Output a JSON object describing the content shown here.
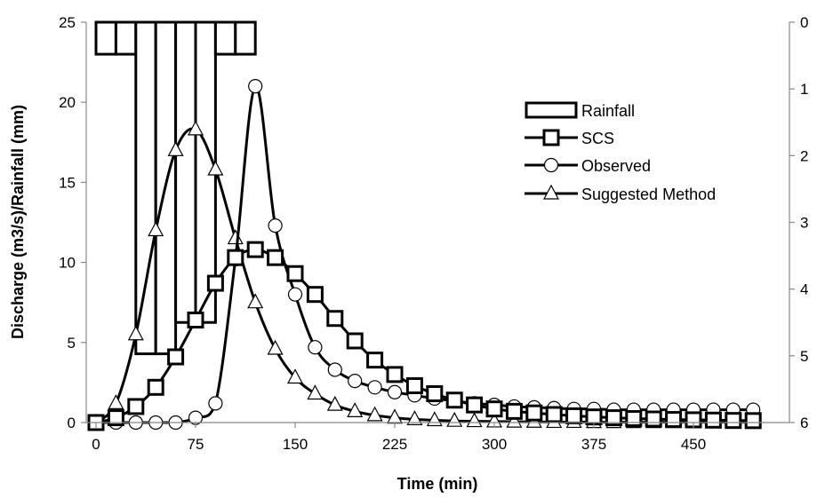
{
  "chart_data": {
    "type": "line",
    "title": "",
    "xlabel": "Time (min)",
    "ylabel": "Discharge (m3/s)/Rainfall (mm)",
    "xlim": [
      0,
      500
    ],
    "ylim": [
      0,
      25
    ],
    "y2lim": [
      0,
      6
    ],
    "y2_inverted": true,
    "xticks": [
      "0",
      "75",
      "150",
      "225",
      "300",
      "375",
      "450"
    ],
    "yticks": [
      "0",
      "5",
      "10",
      "15",
      "20",
      "25"
    ],
    "y2ticks": [
      "0",
      "1",
      "2",
      "3",
      "4",
      "5",
      "6"
    ],
    "grid": false,
    "legend_position": "right",
    "rainfall": {
      "name": "Rainfall",
      "axis": "secondary",
      "bars": [
        {
          "x0": 0,
          "x1": 15,
          "value": 0.48
        },
        {
          "x0": 15,
          "x1": 30,
          "value": 0.48
        },
        {
          "x0": 30,
          "x1": 45,
          "value": 4.97
        },
        {
          "x0": 45,
          "x1": 60,
          "value": 4.97
        },
        {
          "x0": 60,
          "x1": 75,
          "value": 4.5
        },
        {
          "x0": 75,
          "x1": 90,
          "value": 4.5
        },
        {
          "x0": 90,
          "x1": 105,
          "value": 0.48
        },
        {
          "x0": 105,
          "x1": 120,
          "value": 0.48
        }
      ]
    },
    "series": [
      {
        "name": "SCS",
        "marker": "square",
        "x": [
          0,
          15,
          30,
          45,
          60,
          75,
          90,
          105,
          120,
          135,
          150,
          165,
          180,
          195,
          210,
          225,
          240,
          255,
          270,
          285,
          300,
          315,
          330,
          345,
          360,
          375,
          390,
          405,
          420,
          435,
          450,
          465,
          480,
          495
        ],
        "y": [
          0,
          0.3,
          1.0,
          2.2,
          4.1,
          6.4,
          8.7,
          10.3,
          10.8,
          10.3,
          9.3,
          8.0,
          6.5,
          5.1,
          3.9,
          3.0,
          2.3,
          1.8,
          1.4,
          1.1,
          0.85,
          0.7,
          0.6,
          0.5,
          0.42,
          0.35,
          0.3,
          0.25,
          0.22,
          0.19,
          0.17,
          0.15,
          0.13,
          0.12
        ]
      },
      {
        "name": "Observed",
        "marker": "circle",
        "x": [
          0,
          15,
          30,
          45,
          60,
          75,
          90,
          105,
          120,
          135,
          150,
          165,
          180,
          195,
          210,
          225,
          240,
          255,
          270,
          285,
          300,
          315,
          330,
          345,
          360,
          375,
          390,
          405,
          420,
          435,
          450,
          465,
          480,
          495
        ],
        "y": [
          0,
          0,
          0,
          0,
          0,
          0.3,
          1.2,
          10.2,
          21.0,
          12.3,
          8.0,
          4.7,
          3.3,
          2.6,
          2.2,
          1.9,
          1.7,
          1.5,
          1.35,
          1.2,
          1.1,
          1.0,
          0.95,
          0.9,
          0.85,
          0.85,
          0.8,
          0.8,
          0.8,
          0.8,
          0.8,
          0.8,
          0.8,
          0.8
        ]
      },
      {
        "name": "Suggested Method",
        "marker": "triangle",
        "x": [
          0,
          15,
          30,
          45,
          60,
          75,
          90,
          105,
          120,
          135,
          150,
          165,
          180,
          195,
          210,
          225,
          240,
          255,
          270,
          285,
          300,
          315,
          330,
          345,
          360,
          375,
          390,
          405,
          420,
          435,
          450,
          465,
          480,
          495
        ],
        "y": [
          0,
          1.2,
          5.5,
          12.0,
          17.0,
          18.3,
          15.8,
          11.5,
          7.5,
          4.6,
          2.8,
          1.8,
          1.1,
          0.7,
          0.45,
          0.3,
          0.2,
          0.14,
          0.1,
          0.08,
          0.06,
          0.05,
          0.04,
          0.03,
          0.03,
          0.02,
          0.02,
          0.02,
          0.02,
          0.02,
          0.02,
          0.02,
          0.02,
          0.02
        ]
      }
    ]
  }
}
